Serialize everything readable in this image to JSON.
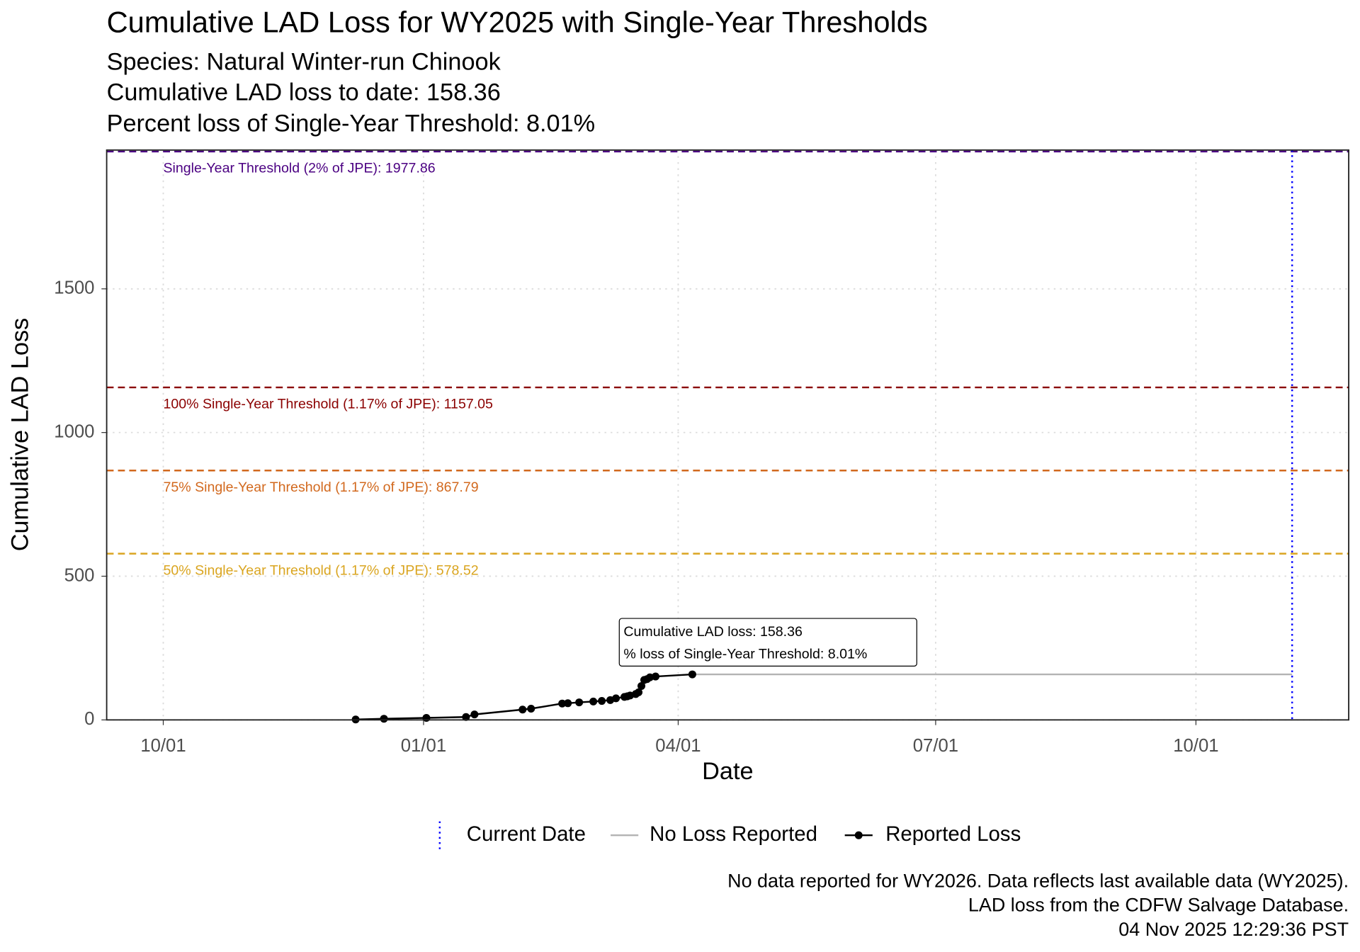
{
  "chart_data": {
    "type": "line",
    "title": "Cumulative LAD Loss for WY2025 with Single-Year Thresholds",
    "subtitle": [
      "Species: Natural Winter-run Chinook",
      "Cumulative LAD loss to date: 158.36",
      "Percent loss of Single-Year Threshold: 8.01%"
    ],
    "x_label": "Date",
    "y_label": "Cumulative LAD Loss",
    "xlim": [
      "2024-09-11",
      "2025-11-24"
    ],
    "xticks": [
      {
        "value": "2024-10-01",
        "label": "10/01"
      },
      {
        "value": "2025-01-01",
        "label": "01/01"
      },
      {
        "value": "2025-04-01",
        "label": "04/01"
      },
      {
        "value": "2025-07-01",
        "label": "07/01"
      },
      {
        "value": "2025-10-01",
        "label": "10/01"
      }
    ],
    "ylim": [
      0,
      1983
    ],
    "yticks": [
      0,
      500,
      1000,
      1500
    ],
    "grid": true,
    "series": [
      {
        "name": "No Loss Reported",
        "color": "#b3b3b3",
        "markers": false,
        "x": [
          "2025-04-06",
          "2025-11-04"
        ],
        "values": [
          158.36,
          158.36
        ]
      },
      {
        "name": "Reported Loss",
        "color": "#000000",
        "markers": true,
        "x": [
          "2024-12-08",
          "2024-12-18",
          "2025-01-02",
          "2025-01-16",
          "2025-01-19",
          "2025-02-05",
          "2025-02-08",
          "2025-02-19",
          "2025-02-21",
          "2025-02-25",
          "2025-03-02",
          "2025-03-05",
          "2025-03-08",
          "2025-03-10",
          "2025-03-13",
          "2025-03-14",
          "2025-03-15",
          "2025-03-17",
          "2025-03-18",
          "2025-03-19",
          "2025-03-20",
          "2025-03-21",
          "2025-03-22",
          "2025-03-24",
          "2025-04-06"
        ],
        "values": [
          1.5,
          4,
          7,
          10,
          19,
          36,
          39,
          57,
          58,
          61,
          64,
          66,
          69,
          75,
          80,
          82,
          85,
          90,
          96,
          118,
          139,
          142,
          148,
          151,
          158.36
        ]
      }
    ],
    "thresholds": [
      {
        "label": "Single-Year Threshold (2% of JPE): 1977.86",
        "value": 1977.86,
        "color": "#4b0082"
      },
      {
        "label": "100% Single-Year Threshold (1.17% of JPE): 1157.05",
        "value": 1157.05,
        "color": "#8b0000"
      },
      {
        "label": "75% Single-Year Threshold (1.17% of JPE): 867.79",
        "value": 867.79,
        "color": "#d2691e"
      },
      {
        "label": "50% Single-Year Threshold (1.17% of JPE): 578.52",
        "value": 578.52,
        "color": "#daa520"
      }
    ],
    "vlines": [
      {
        "name": "Current Date",
        "x": "2025-11-04",
        "color": "#0000ff"
      }
    ],
    "annotation": [
      "Cumulative LAD loss: 158.36",
      "% loss of Single-Year Threshold: 8.01%"
    ],
    "caption": [
      "No data reported for WY2026. Data reflects last available data (WY2025).",
      "LAD loss from the CDFW Salvage Database.",
      "04 Nov 2025 12:29:36 PST"
    ],
    "legend": "bottom"
  }
}
